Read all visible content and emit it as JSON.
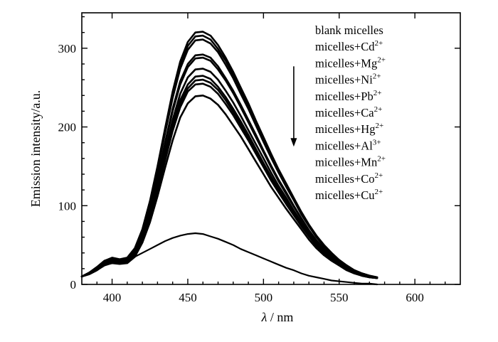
{
  "chart_data": {
    "type": "line",
    "xlabel_symbol": "λ",
    "xlabel_unit": " / nm",
    "ylabel": "Emission intensity/a.u.",
    "xlim": [
      380,
      630
    ],
    "ylim": [
      0,
      345
    ],
    "x_ticks": [
      400,
      450,
      500,
      550,
      600
    ],
    "y_ticks": [
      0,
      100,
      200,
      300
    ],
    "grid": false,
    "legend_position": "top-right",
    "arrow_annotation": {
      "x": 520,
      "y_start": 277,
      "y_end": 175,
      "direction": "down"
    },
    "legend": [
      {
        "base": "blank micelles",
        "sup": ""
      },
      {
        "base": "micelles+Cd",
        "sup": "2+"
      },
      {
        "base": "micelles+Mg",
        "sup": "2+"
      },
      {
        "base": "micelles+Ni",
        "sup": "2+"
      },
      {
        "base": "micelles+Pb",
        "sup": "2+"
      },
      {
        "base": "micelles+Ca",
        "sup": "2+"
      },
      {
        "base": "micelles+Hg",
        "sup": "2+"
      },
      {
        "base": "micelles+Al",
        "sup": "3+"
      },
      {
        "base": "micelles+Mn",
        "sup": "2+"
      },
      {
        "base": "micelles+Co",
        "sup": "2+"
      },
      {
        "base": "micelles+Cu",
        "sup": "2+"
      }
    ],
    "series": [
      {
        "peak": 321,
        "x": [
          380,
          385,
          390,
          395,
          400,
          405,
          410,
          415,
          420,
          425,
          430,
          435,
          440,
          445,
          450,
          455,
          460,
          465,
          470,
          475,
          480,
          485,
          490,
          495,
          500,
          505,
          510,
          515,
          520,
          525,
          530,
          535,
          540,
          545,
          550,
          555,
          560,
          565,
          570,
          575
        ],
        "values": [
          10,
          15,
          22,
          30,
          34,
          32,
          34,
          46,
          70,
          106,
          150,
          198,
          245,
          283,
          308,
          320,
          321,
          316,
          304,
          288,
          270,
          250,
          230,
          208,
          187,
          166,
          146,
          128,
          110,
          92,
          76,
          62,
          50,
          40,
          31,
          24,
          18,
          14,
          11,
          9
        ]
      },
      {
        "peak": 316,
        "x": [
          380,
          385,
          390,
          395,
          400,
          405,
          410,
          415,
          420,
          425,
          430,
          435,
          440,
          445,
          450,
          455,
          460,
          465,
          470,
          475,
          480,
          485,
          490,
          495,
          500,
          505,
          510,
          515,
          520,
          525,
          530,
          535,
          540,
          545,
          550,
          555,
          560,
          565,
          570,
          575
        ],
        "values": [
          10,
          15,
          22,
          30,
          33,
          31,
          33,
          45,
          69,
          104,
          148,
          195,
          241,
          279,
          303,
          315,
          316,
          311,
          299,
          284,
          266,
          246,
          226,
          205,
          184,
          163,
          144,
          126,
          108,
          91,
          75,
          61,
          49,
          39,
          31,
          24,
          18,
          14,
          11,
          9
        ]
      },
      {
        "peak": 311,
        "x": [
          380,
          385,
          390,
          395,
          400,
          405,
          410,
          415,
          420,
          425,
          430,
          435,
          440,
          445,
          450,
          455,
          460,
          465,
          470,
          475,
          480,
          485,
          490,
          495,
          500,
          505,
          510,
          515,
          520,
          525,
          530,
          535,
          540,
          545,
          550,
          555,
          560,
          565,
          570,
          575
        ],
        "values": [
          10,
          15,
          21,
          29,
          33,
          31,
          33,
          44,
          68,
          102,
          145,
          192,
          237,
          274,
          298,
          310,
          311,
          306,
          295,
          279,
          262,
          242,
          223,
          202,
          181,
          161,
          142,
          124,
          107,
          89,
          74,
          60,
          48,
          38,
          30,
          23,
          18,
          14,
          11,
          9
        ]
      },
      {
        "peak": 292,
        "x": [
          380,
          385,
          390,
          395,
          400,
          405,
          410,
          415,
          420,
          425,
          430,
          435,
          440,
          445,
          450,
          455,
          460,
          465,
          470,
          475,
          480,
          485,
          490,
          495,
          500,
          505,
          510,
          515,
          520,
          525,
          530,
          535,
          540,
          545,
          550,
          555,
          560,
          565,
          570,
          575
        ],
        "values": [
          10,
          14,
          21,
          28,
          32,
          30,
          31,
          42,
          64,
          96,
          136,
          180,
          223,
          258,
          280,
          291,
          292,
          288,
          277,
          262,
          246,
          228,
          209,
          190,
          170,
          151,
          133,
          117,
          100,
          84,
          69,
          56,
          45,
          36,
          28,
          22,
          17,
          13,
          10,
          9
        ]
      },
      {
        "peak": 288,
        "x": [
          380,
          385,
          390,
          395,
          400,
          405,
          410,
          415,
          420,
          425,
          430,
          435,
          440,
          445,
          450,
          455,
          460,
          465,
          470,
          475,
          480,
          485,
          490,
          495,
          500,
          505,
          510,
          515,
          520,
          525,
          530,
          535,
          540,
          545,
          550,
          555,
          560,
          565,
          570,
          575
        ],
        "values": [
          10,
          14,
          20,
          28,
          31,
          29,
          31,
          41,
          63,
          95,
          134,
          178,
          220,
          254,
          276,
          287,
          288,
          284,
          273,
          259,
          243,
          225,
          206,
          187,
          168,
          149,
          131,
          115,
          99,
          83,
          68,
          55,
          44,
          35,
          28,
          22,
          17,
          13,
          10,
          9
        ]
      },
      {
        "peak": 274,
        "x": [
          380,
          385,
          390,
          395,
          400,
          405,
          410,
          415,
          420,
          425,
          430,
          435,
          440,
          445,
          450,
          455,
          460,
          465,
          470,
          475,
          480,
          485,
          490,
          495,
          500,
          505,
          510,
          515,
          520,
          525,
          530,
          535,
          540,
          545,
          550,
          555,
          560,
          565,
          570,
          575
        ],
        "values": [
          10,
          14,
          20,
          27,
          30,
          28,
          30,
          40,
          60,
          90,
          128,
          169,
          209,
          242,
          263,
          273,
          274,
          270,
          260,
          246,
          231,
          214,
          196,
          178,
          160,
          142,
          125,
          110,
          94,
          79,
          65,
          53,
          42,
          34,
          27,
          21,
          16,
          12,
          10,
          8
        ]
      },
      {
        "peak": 265,
        "x": [
          380,
          385,
          390,
          395,
          400,
          405,
          410,
          415,
          420,
          425,
          430,
          435,
          440,
          445,
          450,
          455,
          460,
          465,
          470,
          475,
          480,
          485,
          490,
          495,
          500,
          505,
          510,
          515,
          520,
          525,
          530,
          535,
          540,
          545,
          550,
          555,
          560,
          565,
          570,
          575
        ],
        "values": [
          10,
          14,
          20,
          27,
          29,
          28,
          29,
          38,
          58,
          87,
          124,
          163,
          202,
          234,
          254,
          264,
          265,
          261,
          251,
          238,
          223,
          207,
          190,
          172,
          154,
          137,
          121,
          106,
          91,
          76,
          63,
          51,
          41,
          33,
          26,
          20,
          16,
          12,
          10,
          8
        ]
      },
      {
        "peak": 260,
        "x": [
          380,
          385,
          390,
          395,
          400,
          405,
          410,
          415,
          420,
          425,
          430,
          435,
          440,
          445,
          450,
          455,
          460,
          465,
          470,
          475,
          480,
          485,
          490,
          495,
          500,
          505,
          510,
          515,
          520,
          525,
          530,
          535,
          540,
          545,
          550,
          555,
          560,
          565,
          570,
          575
        ],
        "values": [
          10,
          14,
          19,
          26,
          29,
          27,
          29,
          38,
          57,
          86,
          121,
          160,
          199,
          230,
          249,
          259,
          260,
          256,
          247,
          234,
          219,
          203,
          186,
          169,
          152,
          135,
          119,
          104,
          89,
          75,
          62,
          50,
          40,
          32,
          25,
          20,
          15,
          12,
          9,
          8
        ]
      },
      {
        "peak": 255,
        "x": [
          380,
          385,
          390,
          395,
          400,
          405,
          410,
          415,
          420,
          425,
          430,
          435,
          440,
          445,
          450,
          455,
          460,
          465,
          470,
          475,
          480,
          485,
          490,
          495,
          500,
          505,
          510,
          515,
          520,
          525,
          530,
          535,
          540,
          545,
          550,
          555,
          560,
          565,
          570,
          575
        ],
        "values": [
          10,
          14,
          19,
          26,
          28,
          27,
          28,
          37,
          56,
          84,
          119,
          157,
          195,
          225,
          245,
          254,
          255,
          251,
          242,
          229,
          215,
          199,
          183,
          166,
          149,
          132,
          117,
          102,
          88,
          74,
          61,
          49,
          39,
          31,
          25,
          19,
          15,
          11,
          9,
          8
        ]
      },
      {
        "peak": 240,
        "x": [
          380,
          385,
          390,
          395,
          400,
          405,
          410,
          415,
          420,
          425,
          430,
          435,
          440,
          445,
          450,
          455,
          460,
          465,
          470,
          475,
          480,
          485,
          490,
          495,
          500,
          505,
          510,
          515,
          520,
          525,
          530,
          535,
          540,
          545,
          550,
          555,
          560,
          565,
          570,
          575
        ],
        "values": [
          10,
          13,
          18,
          25,
          27,
          26,
          27,
          35,
          53,
          79,
          112,
          148,
          183,
          212,
          230,
          239,
          240,
          236,
          228,
          216,
          202,
          188,
          172,
          156,
          140,
          124,
          110,
          96,
          83,
          70,
          57,
          46,
          37,
          30,
          24,
          18,
          14,
          11,
          9,
          8
        ]
      },
      {
        "peak": 65,
        "x": [
          380,
          385,
          390,
          395,
          400,
          405,
          410,
          415,
          420,
          425,
          430,
          435,
          440,
          445,
          450,
          455,
          460,
          465,
          470,
          475,
          480,
          485,
          490,
          495,
          500,
          505,
          510,
          515,
          520,
          525,
          530,
          535,
          540,
          545,
          550,
          555,
          560,
          565,
          570,
          575
        ],
        "values": [
          10,
          13,
          18,
          24,
          27,
          29,
          31,
          35,
          40,
          45,
          50,
          55,
          59,
          62,
          64,
          65,
          64,
          61,
          58,
          54,
          50,
          45,
          41,
          37,
          33,
          29,
          25,
          21,
          18,
          14,
          11,
          9,
          7,
          5,
          4,
          3,
          2,
          1,
          1,
          0
        ]
      }
    ]
  }
}
